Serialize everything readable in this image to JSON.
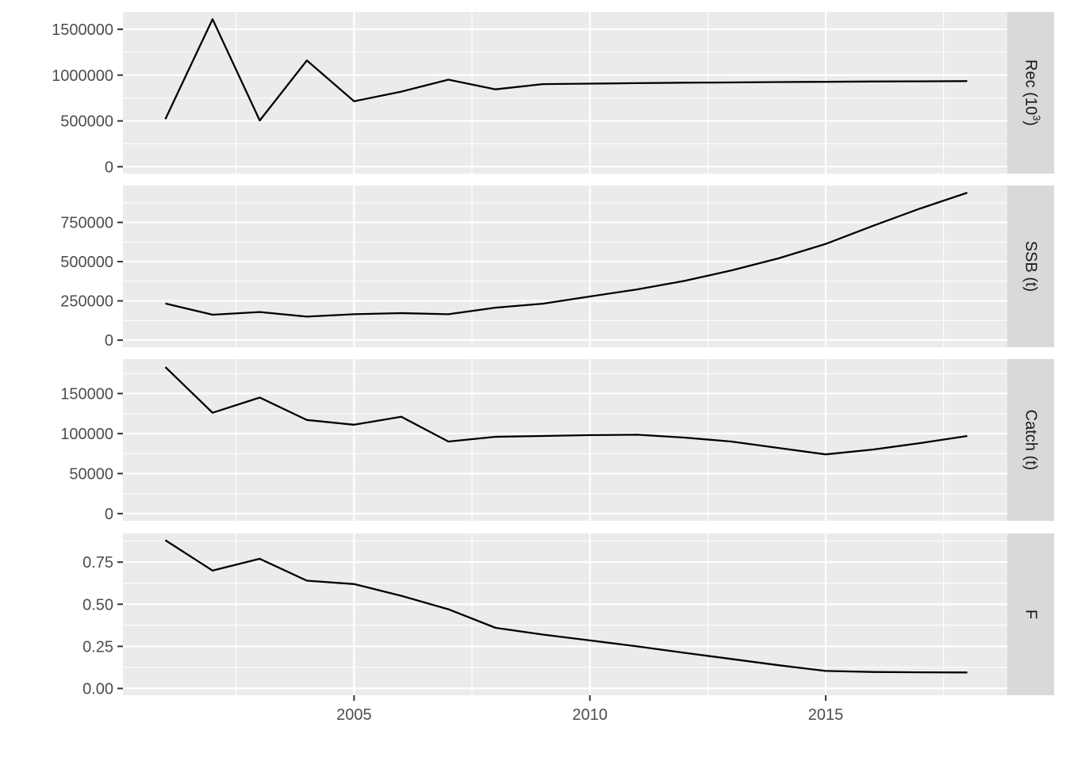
{
  "chart_data": {
    "type": "line",
    "layout": "faceted-vertical",
    "x": [
      2001,
      2002,
      2003,
      2004,
      2005,
      2006,
      2007,
      2008,
      2009,
      2010,
      2011,
      2012,
      2013,
      2014,
      2015,
      2016,
      2017,
      2018
    ],
    "x_ticks": [
      2005,
      2010,
      2015
    ],
    "x_tick_labels": [
      "2005",
      "2010",
      "2015"
    ],
    "xlim": [
      2000.1,
      2018.85
    ],
    "grid": true,
    "legend": "none",
    "colors": {
      "panel": "#ebebeb",
      "strip": "#d9d9d9",
      "line": "#000000",
      "grid": "#ffffff"
    },
    "panels": [
      {
        "strip_base": "Rec (10",
        "strip_sup": "3",
        "strip_end": ")",
        "ylim": [
          -75000,
          1690000
        ],
        "y_ticks": [
          0,
          500000,
          1000000,
          1500000
        ],
        "y_tick_labels": [
          "0",
          "500000",
          "1000000",
          "1500000"
        ],
        "values": [
          520000,
          1610000,
          505000,
          1160000,
          715000,
          820000,
          950000,
          845000,
          902000,
          907000,
          912000,
          917000,
          920000,
          924000,
          927000,
          930000,
          932000,
          935000
        ]
      },
      {
        "strip_base": "SSB (t)",
        "strip_sup": "",
        "strip_end": "",
        "ylim": [
          -45000,
          985000
        ],
        "y_ticks": [
          0,
          250000,
          500000,
          750000
        ],
        "y_tick_labels": [
          "0",
          "250000",
          "500000",
          "750000"
        ],
        "values": [
          233000,
          162000,
          179000,
          150000,
          165000,
          172000,
          165000,
          207000,
          232000,
          278000,
          323000,
          377000,
          444000,
          521000,
          613000,
          728000,
          838000,
          939000
        ]
      },
      {
        "strip_base": "Catch (t)",
        "strip_sup": "",
        "strip_end": "",
        "ylim": [
          -9000,
          193000
        ],
        "y_ticks": [
          0,
          50000,
          100000,
          150000
        ],
        "y_tick_labels": [
          "0",
          "50000",
          "100000",
          "150000"
        ],
        "values": [
          183000,
          126000,
          145000,
          117000,
          111000,
          121000,
          90000,
          96000,
          97000,
          98000,
          98500,
          95000,
          90000,
          82000,
          74000,
          80000,
          88000,
          97000
        ]
      },
      {
        "strip_base": "F",
        "strip_sup": "",
        "strip_end": "",
        "ylim": [
          -0.04,
          0.92
        ],
        "y_ticks": [
          0,
          0.25,
          0.5,
          0.75
        ],
        "y_tick_labels": [
          "0.00",
          "0.25",
          "0.50",
          "0.75"
        ],
        "values": [
          0.88,
          0.7,
          0.77,
          0.64,
          0.62,
          0.55,
          0.47,
          0.36,
          0.32,
          0.285,
          0.25,
          0.212,
          0.175,
          0.138,
          0.104,
          0.098,
          0.096,
          0.095
        ]
      }
    ]
  }
}
